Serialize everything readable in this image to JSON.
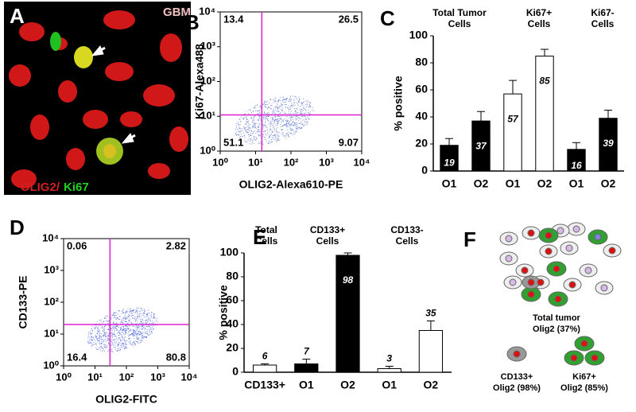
{
  "panel_labels": [
    "A",
    "B",
    "C",
    "D",
    "E",
    "F"
  ],
  "image_a": {
    "tag": "GBM",
    "stain_1": "OLIG2/",
    "stain_2": "Ki67"
  },
  "diagram_f": {
    "total": [
      "Total tumor",
      "Olig2 (37%)"
    ],
    "cd133": [
      "CD133+",
      "Olig2 (98%)"
    ],
    "ki67": [
      "Ki67+",
      "Olig2 (85%)"
    ]
  },
  "chart_data": [
    {
      "type": "scatter",
      "xlabel": "OLIG2-Alexa610-PE",
      "ylabel": "Ki67-Alexa488",
      "xscale": "log",
      "yscale": "log",
      "xlim": [
        1,
        10000
      ],
      "ylim": [
        1,
        10000
      ],
      "xticks": [
        {
          "value": 1,
          "label": "10⁰"
        },
        {
          "value": 10,
          "label": "10¹"
        },
        {
          "value": 100,
          "label": "10²"
        },
        {
          "value": 1000,
          "label": "10³"
        },
        {
          "value": 10000,
          "label": "10⁴"
        }
      ],
      "yticks": [
        {
          "value": 1,
          "label": "10⁰"
        },
        {
          "value": 10,
          "label": "10¹"
        },
        {
          "value": 100,
          "label": "10²"
        },
        {
          "value": 1000,
          "label": "10³"
        },
        {
          "value": 10000,
          "label": "10⁴"
        }
      ],
      "gates": {
        "x": 15,
        "y": 11,
        "color": "#e020d0"
      },
      "quadrants": {
        "upper_left": "13.4",
        "upper_right": "26.5",
        "lower_left": "51.1",
        "lower_right": "9.07"
      },
      "color": "#3050c0"
    },
    {
      "type": "bar",
      "ylabel": "% positive",
      "ylim": [
        0,
        100
      ],
      "yticks": [
        0,
        20,
        40,
        60,
        80,
        100
      ],
      "categories": [
        "O1",
        "O2",
        "O1",
        "O2",
        "O1",
        "O2"
      ],
      "values": [
        19,
        37,
        57,
        85,
        16,
        39
      ],
      "errors": [
        5,
        7,
        10,
        5,
        5,
        6
      ],
      "colors": [
        "#000000",
        "#000000",
        "#ffffff",
        "#ffffff",
        "#000000",
        "#000000"
      ],
      "value_label_position": [
        "inside",
        "inside",
        "inside",
        "inside",
        "inside",
        "inside"
      ],
      "groups": [
        [
          "Total Tumor",
          "Cells"
        ],
        [
          "Ki67+",
          "Cells"
        ],
        [
          "Ki67-",
          "Cells"
        ]
      ]
    },
    {
      "type": "scatter",
      "xlabel": "OLIG2-FITC",
      "ylabel": "CD133-PE",
      "xscale": "log",
      "yscale": "log",
      "xlim": [
        1,
        10000
      ],
      "ylim": [
        1,
        10000
      ],
      "xticks": [
        {
          "value": 1,
          "label": "10⁰"
        },
        {
          "value": 10,
          "label": "10¹"
        },
        {
          "value": 100,
          "label": "10²"
        },
        {
          "value": 1000,
          "label": "10³"
        },
        {
          "value": 10000,
          "label": "10⁴"
        }
      ],
      "yticks": [
        {
          "value": 1,
          "label": "10⁰"
        },
        {
          "value": 10,
          "label": "10¹"
        },
        {
          "value": 100,
          "label": "10²"
        },
        {
          "value": 1000,
          "label": "10³"
        },
        {
          "value": 10000,
          "label": "10⁴"
        }
      ],
      "gates": {
        "x": 30,
        "y": 20,
        "color": "#e020d0"
      },
      "quadrants": {
        "upper_left": "0.06",
        "upper_right": "2.82",
        "lower_left": "16.4",
        "lower_right": "80.8"
      },
      "color": "#2040d0"
    },
    {
      "type": "bar",
      "ylabel": "% positive",
      "ylim": [
        0,
        100
      ],
      "yticks": [
        0,
        20,
        40,
        60,
        80,
        100
      ],
      "categories": [
        "CD133+",
        "O1",
        "O2",
        "O1",
        "O2"
      ],
      "values": [
        6,
        7,
        98,
        3,
        35
      ],
      "errors": [
        1,
        4,
        2,
        2,
        8
      ],
      "colors": [
        "#ffffff",
        "#000000",
        "#000000",
        "#ffffff",
        "#ffffff"
      ],
      "value_label_position": [
        "above",
        "above",
        "inside",
        "above",
        "above"
      ],
      "groups": [
        [
          "Total",
          "Cells"
        ],
        [
          "CD133+",
          "Cells"
        ],
        [
          "CD133-",
          "Cells"
        ]
      ]
    }
  ]
}
